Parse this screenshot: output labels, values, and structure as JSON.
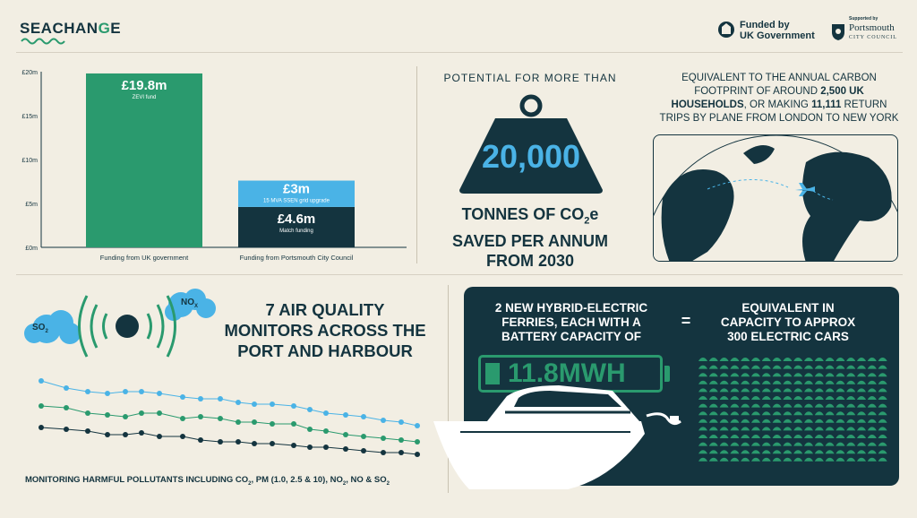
{
  "brand": {
    "name_part1": "SEACHAN",
    "name_accent": "G",
    "name_part2": "E"
  },
  "funders": {
    "uk_gov_line1": "Funded by",
    "uk_gov_line2": "UK Government",
    "council_supported": "Supported by",
    "council_line1": "Portsmouth",
    "council_line2": "CITY COUNCIL"
  },
  "chart_data": {
    "type": "bar",
    "stacked": true,
    "categories": [
      "Funding from UK government",
      "Funding from Portsmouth City Council"
    ],
    "ylim": [
      0,
      20
    ],
    "yticks": [
      "£0m",
      "£5m",
      "£10m",
      "£15m",
      "£20m"
    ],
    "series": [
      {
        "values": [
          19.8,
          4.6
        ],
        "labels": [
          "£19.8m",
          "£4.6m"
        ],
        "sublabels": [
          "ZEVI fund",
          "Match funding"
        ]
      },
      {
        "values": [
          0,
          3
        ],
        "labels": [
          "",
          "£3m"
        ],
        "sublabels": [
          "",
          "15 MVA SSEN grid upgrade"
        ]
      }
    ],
    "colors": [
      "#2a9a6e",
      "#14343f",
      "#4ab3e6"
    ]
  },
  "co2": {
    "potential": "POTENTIAL FOR MORE THAN",
    "number": "20,000",
    "line1": "TONNES OF CO",
    "sub2": "2",
    "line1_end": "e",
    "line2": "SAVED PER ANNUM",
    "line3": "FROM 2030"
  },
  "equivalent": {
    "line1": "EQUIVALENT TO THE ANNUAL CARBON",
    "line2a": "FOOTPRINT OF AROUND ",
    "line2b": "2,500 UK",
    "line3a": "HOUSEHOLDS",
    "line3b": ", OR MAKING ",
    "line3c": "11,111",
    "line3d": " RETURN",
    "line4": "TRIPS BY PLANE FROM LONDON TO NEW YORK"
  },
  "air_quality": {
    "title_line1": "7 AIR QUALITY",
    "title_line2": "MONITORS ACROSS THE",
    "title_line3": "PORT AND HARBOUR",
    "so2": "SO",
    "so2_sub": "2",
    "nox": "NO",
    "nox_sub": "X",
    "caption_a": "MONITORING HARMFUL POLLUTANTS INCLUDING CO",
    "caption_b": ", PM (1.0, 2.5 & 10), NO",
    "caption_c": ", NO & SO",
    "sub2": "2"
  },
  "ferries": {
    "left_line1": "2 NEW HYBRID-ELECTRIC",
    "left_line2": "FERRIES, EACH WITH A",
    "left_line3": "BATTERY CAPACITY OF",
    "equals": "=",
    "right_line1": "EQUIVALENT IN",
    "right_line2": "CAPACITY TO APPROX",
    "right_line3": "300 ELECTRIC CARS",
    "battery": "11.8MWH"
  },
  "colors": {
    "navy": "#14343f",
    "green": "#2a9a6e",
    "blue": "#4ab3e6",
    "cream": "#f2eee3"
  }
}
